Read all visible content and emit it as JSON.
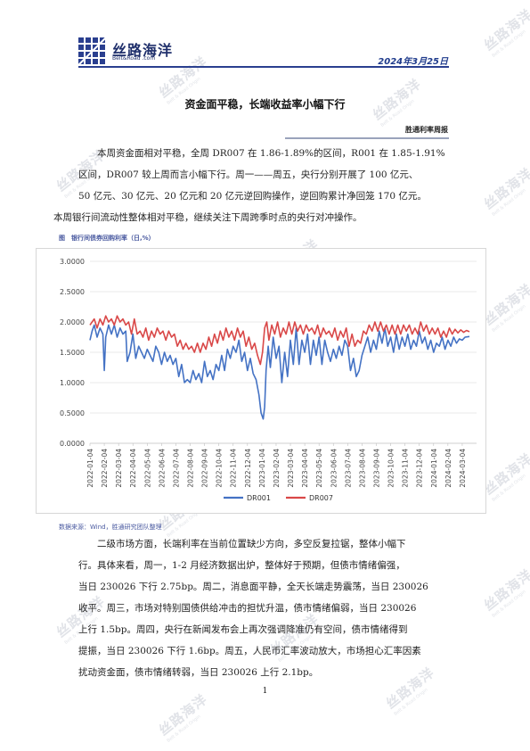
{
  "header": {
    "logo_text": "丝路海洋",
    "logo_sub": "Belt&Road .com",
    "date": "2024年3月25日"
  },
  "watermark": {
    "text": "丝路海洋",
    "sub": "Belt & Road Origin"
  },
  "title": "资金面平稳，长端收益率小幅下行",
  "column_name": "胜通利率周报",
  "paragraphs": [
    [
      "本周资金面相对平稳，全周 DR007 在 1.86-1.89%的区间，R001 在 1.85-1.91%",
      "区间，DR007 较上周而言小幅下行。周一——周五，央行分别开展了 100 亿元、",
      "50 亿元、30 亿元、20 亿元和 20 亿元逆回购操作，逆回购累计净回笼 170 亿元。",
      "本周银行间流动性整体相对平稳，继续关注下周跨季时点的央行对冲操作。"
    ],
    [
      "二级市场方面，长端利率在当前位置缺少方向，多空反复拉锯，整体小幅下",
      "行。具体来看，周一，1-2 月经济数据出炉，整体好于预期，但债市情绪偏强，",
      "当日 230026 下行 2.75bp。周二，消息面平静，全天长端走势震荡，当日 230026",
      "收平。周三，市场对特别国债供给冲击的担忧升温，债市情绪偏弱，当日 230026",
      "上行 1.5bp。周四，央行在新闻发布会上再次强调降准仍有空间，债市情绪得到",
      "提振，当日 230026 下行 1.6bp。周五，人民币汇率波动放大，市场担心汇率因素",
      "扰动资金面，债市情绪转弱，当日 230026 上行 2.1bp。"
    ]
  ],
  "figure_caption": "图　银行间债券回购利率（日,%）",
  "source_note": "数据来源：Wind，胜通研究团队整理",
  "page_number": "1",
  "chart_data": {
    "type": "line",
    "yticks": [
      "3.0000",
      "2.5000",
      "2.0000",
      "1.5000",
      "1.0000",
      "0.5000",
      "0.0000"
    ],
    "ylim": [
      0,
      3
    ],
    "xticks": [
      "2022-01-04",
      "2022-02-04",
      "2022-03-04",
      "2022-04-04",
      "2022-05-04",
      "2022-06-04",
      "2022-07-04",
      "2022-08-04",
      "2022-09-04",
      "2022-10-04",
      "2022-11-04",
      "2022-12-04",
      "2023-01-04",
      "2023-02-04",
      "2023-03-04",
      "2023-04-04",
      "2023-05-04",
      "2023-06-04",
      "2023-07-04",
      "2023-08-04",
      "2023-09-04",
      "2023-10-04",
      "2023-11-04",
      "2023-12-04",
      "2024-01-04",
      "2024-02-04",
      "2024-03-04"
    ],
    "x_range": [
      0,
      27
    ],
    "legend_position": "bottom",
    "series": [
      {
        "name": "DR001",
        "color": "#4472c4",
        "values": [
          [
            0,
            1.7
          ],
          [
            0.15,
            1.85
          ],
          [
            0.3,
            1.95
          ],
          [
            0.5,
            1.75
          ],
          [
            0.7,
            1.9
          ],
          [
            0.9,
            1.8
          ],
          [
            1.0,
            1.2
          ],
          [
            1.1,
            1.75
          ],
          [
            1.3,
            1.95
          ],
          [
            1.5,
            1.8
          ],
          [
            1.7,
            1.95
          ],
          [
            1.9,
            1.75
          ],
          [
            2.1,
            1.9
          ],
          [
            2.3,
            1.8
          ],
          [
            2.5,
            1.85
          ],
          [
            2.6,
            1.35
          ],
          [
            2.8,
            1.5
          ],
          [
            3.0,
            1.8
          ],
          [
            3.2,
            1.4
          ],
          [
            3.4,
            1.6
          ],
          [
            3.6,
            1.5
          ],
          [
            3.8,
            1.4
          ],
          [
            4.0,
            1.55
          ],
          [
            4.2,
            1.45
          ],
          [
            4.4,
            1.35
          ],
          [
            4.6,
            1.6
          ],
          [
            4.8,
            1.5
          ],
          [
            5.0,
            1.3
          ],
          [
            5.2,
            1.5
          ],
          [
            5.4,
            1.35
          ],
          [
            5.6,
            1.45
          ],
          [
            5.8,
            1.3
          ],
          [
            6.0,
            1.4
          ],
          [
            6.2,
            1.1
          ],
          [
            6.4,
            1.3
          ],
          [
            6.6,
            1.0
          ],
          [
            6.8,
            1.05
          ],
          [
            7.0,
            1.0
          ],
          [
            7.2,
            1.2
          ],
          [
            7.4,
            1.05
          ],
          [
            7.6,
            1.15
          ],
          [
            7.8,
            1.0
          ],
          [
            8.0,
            1.35
          ],
          [
            8.2,
            1.1
          ],
          [
            8.4,
            1.2
          ],
          [
            8.6,
            1.05
          ],
          [
            8.8,
            1.3
          ],
          [
            9.0,
            1.2
          ],
          [
            9.2,
            1.45
          ],
          [
            9.4,
            1.2
          ],
          [
            9.6,
            1.55
          ],
          [
            9.8,
            1.4
          ],
          [
            10.0,
            1.6
          ],
          [
            10.2,
            1.5
          ],
          [
            10.4,
            1.7
          ],
          [
            10.6,
            1.35
          ],
          [
            10.8,
            1.5
          ],
          [
            11.0,
            1.2
          ],
          [
            11.2,
            1.4
          ],
          [
            11.4,
            1.15
          ],
          [
            11.6,
            1.05
          ],
          [
            11.8,
            0.8
          ],
          [
            11.95,
            0.5
          ],
          [
            12.1,
            0.4
          ],
          [
            12.2,
            0.6
          ],
          [
            12.3,
            1.2
          ],
          [
            12.45,
            1.6
          ],
          [
            12.6,
            1.25
          ],
          [
            12.8,
            1.75
          ],
          [
            13.0,
            1.4
          ],
          [
            13.2,
            1.6
          ],
          [
            13.4,
            1.0
          ],
          [
            13.6,
            1.5
          ],
          [
            13.8,
            1.1
          ],
          [
            14.0,
            1.7
          ],
          [
            14.2,
            1.3
          ],
          [
            14.4,
            1.9
          ],
          [
            14.6,
            1.3
          ],
          [
            14.8,
            1.7
          ],
          [
            15.0,
            1.5
          ],
          [
            15.2,
            1.8
          ],
          [
            15.4,
            1.3
          ],
          [
            15.6,
            1.7
          ],
          [
            15.8,
            1.45
          ],
          [
            16.0,
            1.75
          ],
          [
            16.2,
            1.3
          ],
          [
            16.4,
            1.7
          ],
          [
            16.6,
            1.5
          ],
          [
            16.8,
            1.35
          ],
          [
            17.0,
            1.55
          ],
          [
            17.2,
            1.4
          ],
          [
            17.4,
            1.6
          ],
          [
            17.6,
            1.45
          ],
          [
            17.8,
            1.7
          ],
          [
            18.0,
            1.6
          ],
          [
            18.2,
            1.2
          ],
          [
            18.4,
            1.4
          ],
          [
            18.6,
            1.1
          ],
          [
            18.8,
            1.2
          ],
          [
            19.0,
            1.45
          ],
          [
            19.2,
            1.6
          ],
          [
            19.4,
            1.75
          ],
          [
            19.6,
            1.5
          ],
          [
            19.8,
            1.7
          ],
          [
            20.0,
            1.55
          ],
          [
            20.2,
            1.85
          ],
          [
            20.4,
            1.65
          ],
          [
            20.6,
            1.9
          ],
          [
            20.8,
            1.6
          ],
          [
            21.0,
            1.75
          ],
          [
            21.2,
            1.5
          ],
          [
            21.4,
            1.8
          ],
          [
            21.6,
            1.55
          ],
          [
            21.8,
            1.75
          ],
          [
            22.0,
            1.6
          ],
          [
            22.2,
            1.8
          ],
          [
            22.4,
            1.55
          ],
          [
            22.6,
            1.7
          ],
          [
            22.8,
            1.6
          ],
          [
            23.0,
            1.85
          ],
          [
            23.2,
            1.65
          ],
          [
            23.4,
            1.75
          ],
          [
            23.6,
            1.55
          ],
          [
            23.8,
            1.7
          ],
          [
            24.0,
            1.5
          ],
          [
            24.2,
            1.65
          ],
          [
            24.4,
            1.6
          ],
          [
            24.6,
            1.75
          ],
          [
            24.8,
            1.55
          ],
          [
            25.0,
            1.7
          ],
          [
            25.2,
            1.6
          ],
          [
            25.4,
            1.75
          ],
          [
            25.6,
            1.65
          ],
          [
            25.8,
            1.72
          ],
          [
            26.0,
            1.7
          ],
          [
            26.2,
            1.75
          ],
          [
            26.5,
            1.76
          ]
        ]
      },
      {
        "name": "DR007",
        "color": "#d94848",
        "values": [
          [
            0,
            1.95
          ],
          [
            0.15,
            2.0
          ],
          [
            0.3,
            2.05
          ],
          [
            0.5,
            1.9
          ],
          [
            0.7,
            2.05
          ],
          [
            0.9,
            1.95
          ],
          [
            1.1,
            2.1
          ],
          [
            1.3,
            2.0
          ],
          [
            1.5,
            2.05
          ],
          [
            1.7,
            1.95
          ],
          [
            1.9,
            2.1
          ],
          [
            2.1,
            2.0
          ],
          [
            2.3,
            2.05
          ],
          [
            2.5,
            1.95
          ],
          [
            2.7,
            2.0
          ],
          [
            2.9,
            1.8
          ],
          [
            3.1,
            2.05
          ],
          [
            3.3,
            1.8
          ],
          [
            3.5,
            1.85
          ],
          [
            3.7,
            1.75
          ],
          [
            3.9,
            1.9
          ],
          [
            4.1,
            1.7
          ],
          [
            4.3,
            1.85
          ],
          [
            4.5,
            1.75
          ],
          [
            4.7,
            1.9
          ],
          [
            4.9,
            1.8
          ],
          [
            5.1,
            1.85
          ],
          [
            5.3,
            1.7
          ],
          [
            5.5,
            1.85
          ],
          [
            5.7,
            1.75
          ],
          [
            5.9,
            1.8
          ],
          [
            6.1,
            1.6
          ],
          [
            6.3,
            1.7
          ],
          [
            6.5,
            1.55
          ],
          [
            6.7,
            1.65
          ],
          [
            6.9,
            1.55
          ],
          [
            7.1,
            1.6
          ],
          [
            7.3,
            1.5
          ],
          [
            7.5,
            1.65
          ],
          [
            7.7,
            1.5
          ],
          [
            7.9,
            1.65
          ],
          [
            8.1,
            1.55
          ],
          [
            8.3,
            1.75
          ],
          [
            8.5,
            1.6
          ],
          [
            8.7,
            1.8
          ],
          [
            8.9,
            1.65
          ],
          [
            9.1,
            1.85
          ],
          [
            9.3,
            1.7
          ],
          [
            9.5,
            1.9
          ],
          [
            9.7,
            1.75
          ],
          [
            9.9,
            1.85
          ],
          [
            10.1,
            1.7
          ],
          [
            10.3,
            1.9
          ],
          [
            10.5,
            1.75
          ],
          [
            10.7,
            1.85
          ],
          [
            10.9,
            1.6
          ],
          [
            11.1,
            1.75
          ],
          [
            11.3,
            1.55
          ],
          [
            11.5,
            1.65
          ],
          [
            11.7,
            1.45
          ],
          [
            11.9,
            1.3
          ],
          [
            12.05,
            1.5
          ],
          [
            12.2,
            1.9
          ],
          [
            12.35,
            2.0
          ],
          [
            12.5,
            1.7
          ],
          [
            12.7,
            1.95
          ],
          [
            12.9,
            1.8
          ],
          [
            13.1,
            2.0
          ],
          [
            13.3,
            1.75
          ],
          [
            13.5,
            1.9
          ],
          [
            13.7,
            1.8
          ],
          [
            13.9,
            2.0
          ],
          [
            14.1,
            1.8
          ],
          [
            14.3,
            2.0
          ],
          [
            14.5,
            1.85
          ],
          [
            14.7,
            1.95
          ],
          [
            14.9,
            1.8
          ],
          [
            15.1,
            1.95
          ],
          [
            15.3,
            1.85
          ],
          [
            15.5,
            1.9
          ],
          [
            15.7,
            1.8
          ],
          [
            15.9,
            1.95
          ],
          [
            16.1,
            1.75
          ],
          [
            16.3,
            1.9
          ],
          [
            16.5,
            1.8
          ],
          [
            16.7,
            1.85
          ],
          [
            16.9,
            1.75
          ],
          [
            17.1,
            1.9
          ],
          [
            17.3,
            1.7
          ],
          [
            17.5,
            1.85
          ],
          [
            17.7,
            1.75
          ],
          [
            17.9,
            1.9
          ],
          [
            18.1,
            1.6
          ],
          [
            18.3,
            1.8
          ],
          [
            18.5,
            1.6
          ],
          [
            18.7,
            1.7
          ],
          [
            18.9,
            1.65
          ],
          [
            19.1,
            1.85
          ],
          [
            19.3,
            1.8
          ],
          [
            19.5,
            1.95
          ],
          [
            19.7,
            1.85
          ],
          [
            19.9,
            2.0
          ],
          [
            20.1,
            1.85
          ],
          [
            20.3,
            2.0
          ],
          [
            20.5,
            1.85
          ],
          [
            20.7,
            1.95
          ],
          [
            20.9,
            1.8
          ],
          [
            21.1,
            1.95
          ],
          [
            21.3,
            1.8
          ],
          [
            21.5,
            1.95
          ],
          [
            21.7,
            1.8
          ],
          [
            21.9,
            1.95
          ],
          [
            22.1,
            1.85
          ],
          [
            22.3,
            1.95
          ],
          [
            22.5,
            1.8
          ],
          [
            22.7,
            1.9
          ],
          [
            22.9,
            1.8
          ],
          [
            23.1,
            2.0
          ],
          [
            23.3,
            1.85
          ],
          [
            23.5,
            1.95
          ],
          [
            23.7,
            1.8
          ],
          [
            23.9,
            1.9
          ],
          [
            24.1,
            1.8
          ],
          [
            24.3,
            1.9
          ],
          [
            24.5,
            1.75
          ],
          [
            24.7,
            1.85
          ],
          [
            24.9,
            1.75
          ],
          [
            25.1,
            1.9
          ],
          [
            25.3,
            1.8
          ],
          [
            25.5,
            1.88
          ],
          [
            25.7,
            1.82
          ],
          [
            25.9,
            1.87
          ],
          [
            26.1,
            1.83
          ],
          [
            26.3,
            1.86
          ],
          [
            26.5,
            1.84
          ]
        ]
      }
    ]
  }
}
